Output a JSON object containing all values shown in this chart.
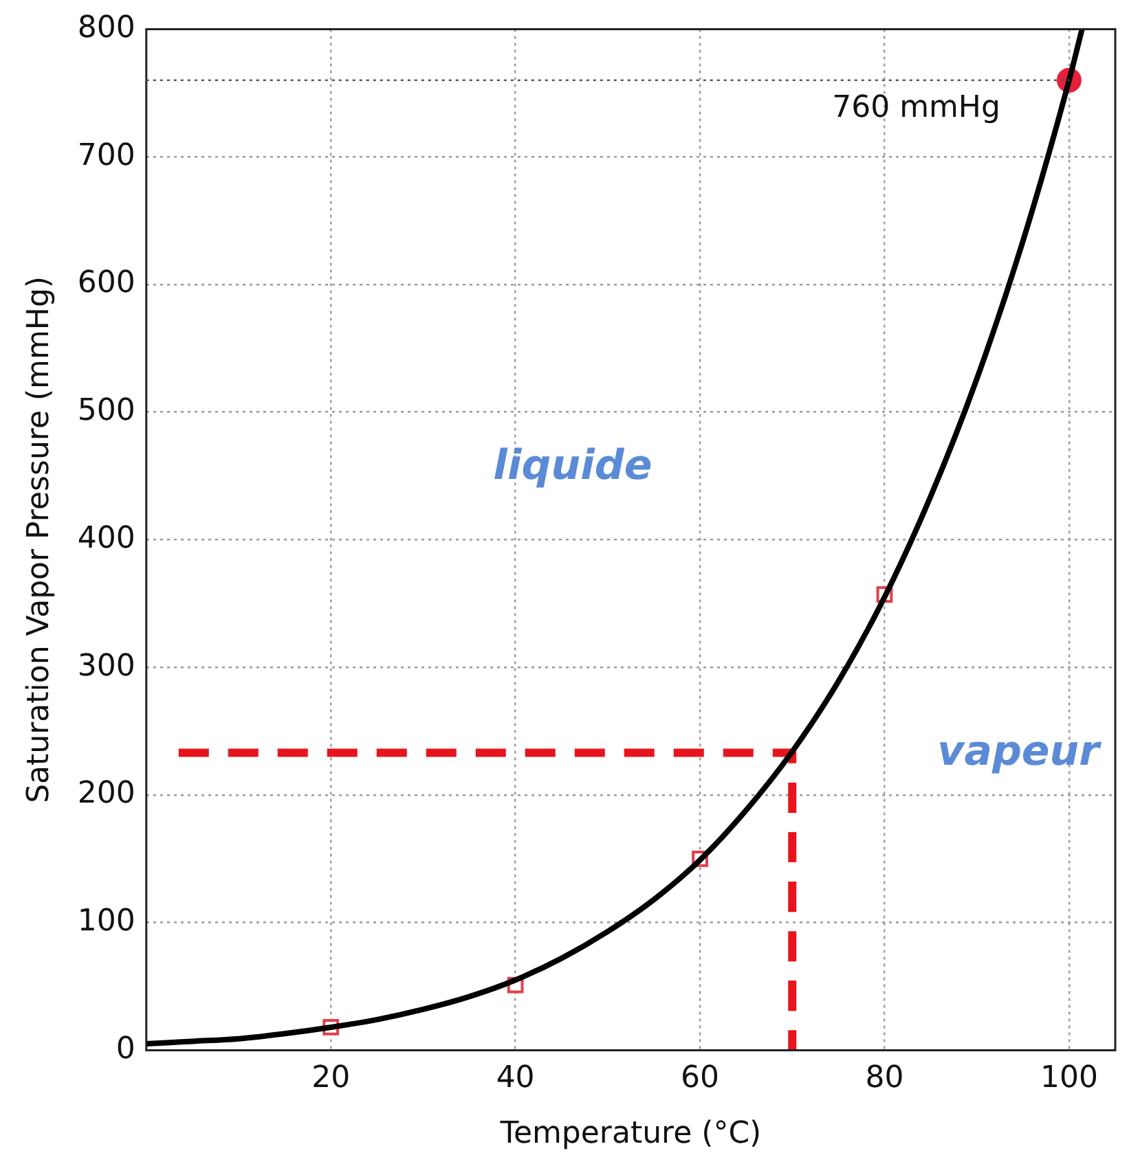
{
  "chart_data": {
    "type": "line",
    "xlabel": "Temperature (°C)",
    "ylabel": "Saturation Vapor Pressure (mmHg)",
    "xlim": [
      0,
      105
    ],
    "ylim": [
      0,
      800
    ],
    "xticks": [
      20,
      40,
      60,
      80,
      100
    ],
    "yticks": [
      0,
      100,
      200,
      300,
      400,
      500,
      600,
      700,
      800
    ],
    "grid": true,
    "legend": false,
    "series": [
      {
        "color": "#000000",
        "marker": "none",
        "line_style": "solid",
        "x": [
          0,
          5,
          10,
          15,
          20,
          25,
          30,
          35,
          40,
          45,
          50,
          55,
          60,
          65,
          70,
          75,
          80,
          85,
          90,
          95,
          100,
          101.4
        ],
        "values": [
          5,
          7,
          9,
          13,
          18,
          24,
          32,
          42,
          55,
          72,
          93,
          118,
          149,
          188,
          234,
          289,
          355,
          434,
          526,
          634,
          760,
          800
        ]
      },
      {
        "color": "#e8141c",
        "marker": "none",
        "line_style": "dashed",
        "x": [
          3.5,
          70,
          70
        ],
        "values": [
          233,
          233,
          0
        ]
      },
      {
        "type": "scatter",
        "color": "#e0404a",
        "marker": "square",
        "x": [
          20,
          40,
          60,
          80
        ],
        "values": [
          18,
          51,
          150,
          357
        ]
      },
      {
        "type": "scatter",
        "color": "#e8203a",
        "marker": "circle",
        "x": [
          100
        ],
        "values": [
          760
        ]
      }
    ],
    "ref_lines": [
      {
        "axis": "y",
        "value": 760,
        "label": "760 mmHg",
        "color": "#555555",
        "line_style": "dotted"
      }
    ],
    "annotations": [
      "liquide",
      "vapeur"
    ]
  }
}
